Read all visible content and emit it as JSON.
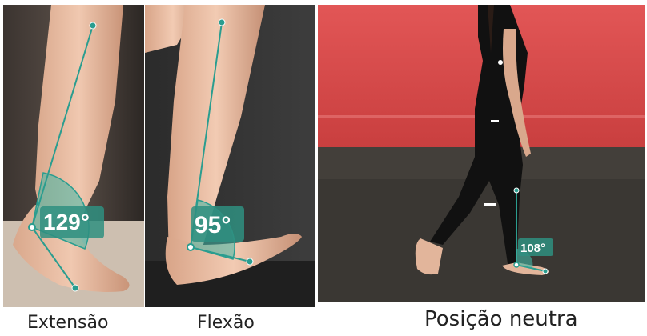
{
  "panels": [
    {
      "id": "extension",
      "caption": "Extensão",
      "angle_label": "129°"
    },
    {
      "id": "flexion",
      "caption": "Flexão",
      "angle_label": "95°"
    },
    {
      "id": "neutral",
      "caption": "Posição neutra",
      "angle_label": "108°"
    }
  ],
  "colors": {
    "goniometer_line": "#2a9d8f",
    "goniometer_fill": "#3fb6a5",
    "label_box": "#2f8f80",
    "background_wall": "#d94b4b",
    "floor": "#3a3733"
  }
}
